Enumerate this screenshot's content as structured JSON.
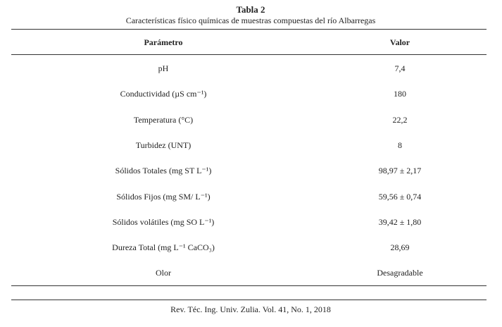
{
  "header": {
    "title": "Tabla 2",
    "caption": "Características físico químicas de muestras compuestas del  río Albarregas"
  },
  "table": {
    "columns": [
      "Parámetro",
      "Valor"
    ],
    "rows": [
      [
        "pH",
        "7,4"
      ],
      [
        "Conductividad (µS cm⁻¹)",
        "180"
      ],
      [
        "Temperatura (°C)",
        "22,2"
      ],
      [
        "Turbidez (UNT)",
        "8"
      ],
      [
        "Sólidos Totales (mg ST L⁻¹)",
        "98,97 ± 2,17"
      ],
      [
        "Sólidos Fijos (mg SM/ L⁻¹)",
        "59,56 ± 0,74"
      ],
      [
        "Sólidos volátiles (mg SO L⁻¹)",
        "39,42 ± 1,80"
      ],
      [
        "Dureza Total (mg L⁻¹ CaCO₃)",
        "28,69"
      ],
      [
        "Olor",
        "Desagradable"
      ]
    ]
  },
  "footer": {
    "source": "Rev. Téc. Ing. Univ. Zulia. Vol. 41, No. 1, 2018"
  }
}
